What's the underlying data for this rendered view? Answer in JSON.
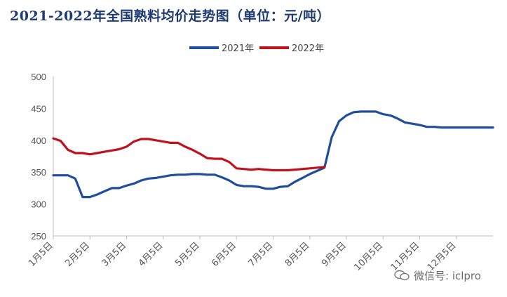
{
  "title": "2021-2022年全国熟料均价走势图（单位：元/吨）",
  "watermark": {
    "text": "微信号: iclpro",
    "icon": "wechat-icon"
  },
  "colors": {
    "s2021": "#1f4e9c",
    "s2022": "#c0121c",
    "axis": "#bdbdbd"
  },
  "chart_data": {
    "type": "line",
    "title": "2021-2022年全国熟料均价走势图（单位：元/吨）",
    "xlabel": "",
    "ylabel": "",
    "ylim": [
      250,
      500
    ],
    "yticks": [
      250,
      300,
      350,
      400,
      450,
      500
    ],
    "grid": false,
    "legend": "top-center",
    "categories": [
      "1月5日",
      "2月5日",
      "3月5日",
      "4月5日",
      "5月5日",
      "6月5日",
      "7月5日",
      "8月5日",
      "9月5日",
      "10月5日",
      "11月5日",
      "12月5日"
    ],
    "series": [
      {
        "name": "2021年",
        "x": [
          0,
          0.2,
          0.4,
          0.6,
          0.8,
          1.0,
          1.2,
          1.4,
          1.6,
          1.8,
          2.0,
          2.2,
          2.4,
          2.6,
          2.8,
          3.0,
          3.2,
          3.4,
          3.6,
          3.8,
          4.0,
          4.2,
          4.4,
          4.6,
          4.8,
          5.0,
          5.2,
          5.4,
          5.6,
          5.8,
          6.0,
          6.2,
          6.4,
          6.6,
          6.8,
          7.0,
          7.2,
          7.4,
          7.6,
          7.8,
          8.0,
          8.2,
          8.4,
          8.6,
          8.8,
          9.0,
          9.2,
          9.4,
          9.6,
          9.8,
          10.0,
          10.2,
          10.4,
          10.6,
          10.8,
          11.0,
          11.2,
          11.4,
          11.6,
          11.8,
          12.0
        ],
        "values": [
          345,
          345,
          345,
          340,
          311,
          311,
          315,
          320,
          325,
          325,
          329,
          332,
          337,
          340,
          341,
          343,
          345,
          346,
          346,
          347,
          347,
          346,
          346,
          342,
          337,
          330,
          328,
          328,
          327,
          324,
          324,
          327,
          328,
          335,
          341,
          347,
          352,
          357,
          405,
          430,
          439,
          444,
          445,
          445,
          445,
          441,
          439,
          434,
          428,
          426,
          424,
          421,
          421,
          420,
          420,
          420,
          420,
          420,
          420,
          420,
          420
        ]
      },
      {
        "name": "2022年",
        "x": [
          0,
          0.2,
          0.4,
          0.6,
          0.8,
          1.0,
          1.2,
          1.4,
          1.6,
          1.8,
          2.0,
          2.2,
          2.4,
          2.6,
          2.8,
          3.0,
          3.2,
          3.4,
          3.6,
          3.8,
          4.0,
          4.2,
          4.4,
          4.6,
          4.8,
          5.0,
          5.2,
          5.4,
          5.6,
          5.8,
          6.0,
          6.2,
          6.4,
          6.6,
          6.8,
          7.0,
          7.2,
          7.4
        ],
        "values": [
          403,
          399,
          385,
          380,
          380,
          378,
          380,
          382,
          384,
          386,
          390,
          398,
          402,
          402,
          400,
          398,
          396,
          396,
          390,
          385,
          379,
          372,
          371,
          371,
          366,
          356,
          355,
          354,
          355,
          354,
          353,
          353,
          353,
          354,
          355,
          356,
          357,
          358
        ]
      }
    ]
  }
}
